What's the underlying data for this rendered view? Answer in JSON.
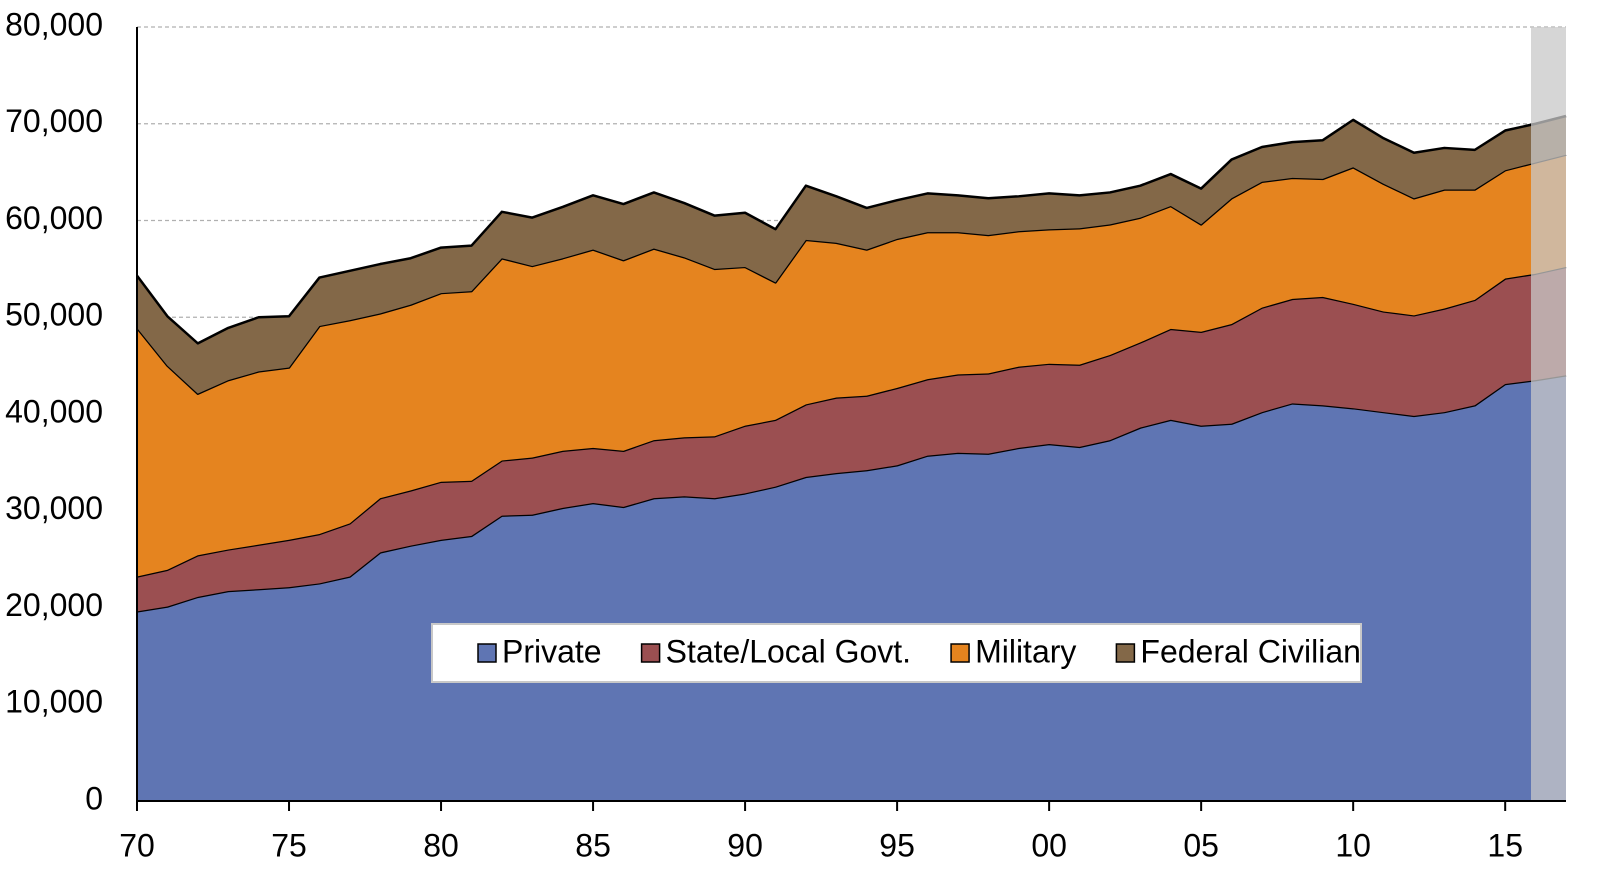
{
  "chart_data": {
    "type": "stacked_area",
    "x": [
      1970,
      1971,
      1972,
      1973,
      1974,
      1975,
      1976,
      1977,
      1978,
      1979,
      1980,
      1981,
      1982,
      1983,
      1984,
      1985,
      1986,
      1987,
      1988,
      1989,
      1990,
      1991,
      1992,
      1993,
      1994,
      1995,
      1996,
      1997,
      1998,
      1999,
      2000,
      2001,
      2002,
      2003,
      2004,
      2005,
      2006,
      2007,
      2008,
      2009,
      2010,
      2011,
      2012,
      2013,
      2014,
      2015,
      2016,
      2017
    ],
    "series": [
      {
        "name": "Private",
        "color": "#5f75b3",
        "values": [
          19600,
          20100,
          21100,
          21700,
          21900,
          22100,
          22500,
          23200,
          25700,
          26400,
          27000,
          27400,
          29500,
          29600,
          30300,
          30800,
          30400,
          31300,
          31500,
          31300,
          31800,
          32500,
          33500,
          33900,
          34200,
          34700,
          35700,
          36000,
          35900,
          36500,
          36900,
          36600,
          37300,
          38600,
          39400,
          38800,
          39000,
          40200,
          41100,
          40900,
          40600,
          40200,
          39800,
          40200,
          40900,
          43100,
          43500,
          44000
        ]
      },
      {
        "name": "State/Local Govt.",
        "color": "#9b4f51",
        "values": [
          3600,
          3800,
          4300,
          4300,
          4600,
          4900,
          5100,
          5500,
          5600,
          5700,
          6000,
          5700,
          5700,
          5900,
          5900,
          5700,
          5800,
          6000,
          6100,
          6400,
          7000,
          6900,
          7500,
          7800,
          7700,
          8000,
          7900,
          8100,
          8300,
          8400,
          8300,
          8500,
          8800,
          8800,
          9400,
          9700,
          10300,
          10800,
          10800,
          11200,
          10800,
          10400,
          10400,
          10700,
          10900,
          10900,
          11000,
          11200
        ]
      },
      {
        "name": "Military",
        "color": "#e5841f",
        "values": [
          25700,
          21100,
          16700,
          17500,
          17900,
          17800,
          21500,
          21000,
          19100,
          19200,
          19500,
          19600,
          20900,
          19800,
          19900,
          20500,
          19700,
          19800,
          18600,
          17300,
          16400,
          14200,
          17000,
          16000,
          15100,
          15400,
          15200,
          14700,
          14300,
          14000,
          13900,
          14100,
          13500,
          12900,
          12700,
          11100,
          13000,
          13000,
          12500,
          12200,
          14100,
          13200,
          12100,
          12300,
          11400,
          11200,
          11500,
          11600
        ]
      },
      {
        "name": "Federal Civilian",
        "color": "#836848",
        "values": [
          5400,
          5100,
          5200,
          5400,
          5600,
          5300,
          5000,
          5100,
          5100,
          4800,
          4700,
          4700,
          4800,
          5000,
          5300,
          5600,
          5800,
          5800,
          5600,
          5500,
          5600,
          5500,
          5600,
          4800,
          4300,
          4000,
          4000,
          3800,
          3800,
          3600,
          3700,
          3400,
          3300,
          3300,
          3300,
          3700,
          4000,
          3600,
          3700,
          4000,
          4900,
          4700,
          4700,
          4300,
          4100,
          4100,
          4000,
          4000
        ]
      }
    ],
    "xlim": [
      1970,
      2017
    ],
    "xticks": [
      {
        "value": 1970,
        "label": "70"
      },
      {
        "value": 1975,
        "label": "75"
      },
      {
        "value": 1980,
        "label": "80"
      },
      {
        "value": 1985,
        "label": "85"
      },
      {
        "value": 1990,
        "label": "90"
      },
      {
        "value": 1995,
        "label": "95"
      },
      {
        "value": 2000,
        "label": "00"
      },
      {
        "value": 2005,
        "label": "05"
      },
      {
        "value": 2010,
        "label": "10"
      },
      {
        "value": 2015,
        "label": "15"
      }
    ],
    "ylim": [
      0,
      80000
    ],
    "yticks": [
      0,
      {
        "value": 10000,
        "label": "10,000"
      },
      {
        "value": 20000,
        "label": "20,000"
      },
      {
        "value": 30000,
        "label": "30,000"
      },
      {
        "value": 40000,
        "label": "40,000"
      },
      {
        "value": 50000,
        "label": "50,000"
      },
      {
        "value": 60000,
        "label": "60,000"
      },
      {
        "value": 70000,
        "label": "70,000"
      },
      {
        "value": 80000,
        "label": "80,000"
      }
    ],
    "grid": true,
    "legend": "bottom"
  }
}
